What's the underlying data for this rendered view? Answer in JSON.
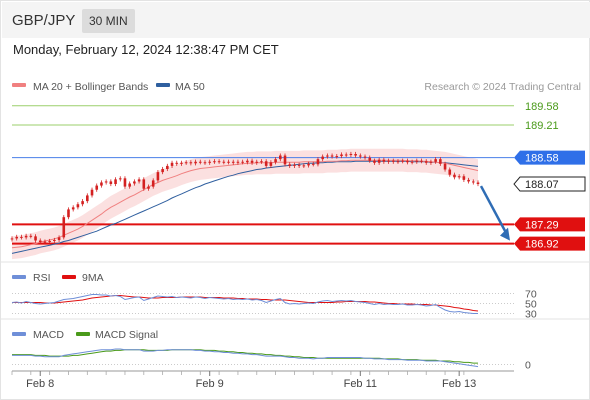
{
  "header": {
    "symbol": "GBP/JPY",
    "timeframe": "30 MIN",
    "datetime": "Monday, February 12, 2024 12:38:47 PM CET"
  },
  "legend": {
    "ma20_label": "MA 20 + Bollinger Bands",
    "ma50_label": "MA 50",
    "rsi_label": "RSI",
    "rsi_ma_label": "9MA",
    "macd_label": "MACD",
    "macd_signal_label": "MACD Signal"
  },
  "credit": "Research © 2024 Trading Central",
  "colors": {
    "ma20": "#f08080",
    "ma50": "#2f5f9f",
    "bands_fill": "#fadada",
    "resistance": "#9bcf6b",
    "pivot": "#4a7fe8",
    "support": "#e01010",
    "candle": "#d42020",
    "arrow": "#2f6db5",
    "rsi": "#6f8fd8",
    "macd": "#6f8fd8",
    "macd_signal": "#4a9a1a"
  },
  "chart_data": [
    {
      "type": "candlestick",
      "price_axis": {
        "ylim": [
          186.7,
          189.75
        ]
      },
      "levels": [
        {
          "label": "189.58",
          "value": 189.58,
          "kind": "resistance"
        },
        {
          "label": "189.21",
          "value": 189.21,
          "kind": "resistance"
        },
        {
          "label": "188.58",
          "value": 188.58,
          "kind": "pivot"
        },
        {
          "label": "188.07",
          "value": 188.07,
          "kind": "last"
        },
        {
          "label": "187.29",
          "value": 187.29,
          "kind": "support"
        },
        {
          "label": "186.92",
          "value": 186.92,
          "kind": "support"
        }
      ],
      "x_ticks": [
        "Feb 8",
        "Feb 9",
        "Feb 11",
        "Feb 13"
      ],
      "x_tick_index": [
        6,
        42,
        74,
        95
      ],
      "n_bars": 100,
      "close": [
        187.02,
        187.05,
        187.04,
        187.07,
        187.06,
        186.98,
        186.95,
        186.96,
        186.97,
        186.99,
        187.04,
        187.43,
        187.58,
        187.62,
        187.68,
        187.74,
        187.85,
        187.96,
        188.04,
        188.1,
        188.12,
        188.07,
        188.16,
        188.18,
        188.02,
        188.08,
        188.12,
        188.16,
        187.98,
        188.02,
        188.14,
        188.3,
        188.36,
        188.42,
        188.48,
        188.46,
        188.48,
        188.49,
        188.47,
        188.5,
        188.49,
        188.48,
        188.5,
        188.51,
        188.5,
        188.49,
        188.5,
        188.48,
        188.5,
        188.49,
        188.52,
        188.48,
        188.5,
        188.51,
        188.42,
        188.49,
        188.55,
        188.62,
        188.45,
        188.42,
        188.44,
        188.42,
        188.43,
        188.46,
        188.45,
        188.55,
        188.6,
        188.62,
        188.6,
        188.61,
        188.64,
        188.63,
        188.65,
        188.62,
        188.6,
        188.58,
        188.52,
        188.48,
        188.54,
        188.5,
        188.52,
        188.5,
        188.51,
        188.52,
        188.49,
        188.5,
        188.52,
        188.51,
        188.48,
        188.5,
        188.55,
        188.46,
        188.35,
        188.25,
        188.2,
        188.22,
        188.15,
        188.12,
        188.1,
        188.07
      ],
      "ma20": [
        186.84,
        186.85,
        186.86,
        186.88,
        186.9,
        186.92,
        186.95,
        186.97,
        186.99,
        187.01,
        187.04,
        187.08,
        187.12,
        187.16,
        187.2,
        187.25,
        187.31,
        187.37,
        187.43,
        187.49,
        187.56,
        187.62,
        187.67,
        187.72,
        187.77,
        187.82,
        187.86,
        187.91,
        187.96,
        188.01,
        188.06,
        188.1,
        188.14,
        188.17,
        188.2,
        188.23,
        188.27,
        188.3,
        188.33,
        188.35,
        188.37,
        188.38,
        188.39,
        188.4,
        188.41,
        188.42,
        188.43,
        188.44,
        188.45,
        188.46,
        188.47,
        188.47,
        188.48,
        188.48,
        188.48,
        188.48,
        188.49,
        188.49,
        188.49,
        188.49,
        188.49,
        188.49,
        188.5,
        188.5,
        188.5,
        188.5,
        188.5,
        188.51,
        188.51,
        188.51,
        188.52,
        188.52,
        188.53,
        188.53,
        188.53,
        188.53,
        188.53,
        188.53,
        188.53,
        188.53,
        188.53,
        188.53,
        188.53,
        188.53,
        188.52,
        188.52,
        188.52,
        188.51,
        188.51,
        188.5,
        188.49,
        188.48,
        188.47,
        188.45,
        188.43,
        188.41,
        188.39,
        188.37,
        188.35,
        188.33
      ],
      "bollinger_band_width": 0.22,
      "ma50": [
        186.73,
        186.75,
        186.77,
        186.79,
        186.81,
        186.83,
        186.85,
        186.87,
        186.89,
        186.91,
        186.93,
        186.96,
        186.98,
        187.01,
        187.04,
        187.07,
        187.1,
        187.13,
        187.16,
        187.2,
        187.24,
        187.28,
        187.31,
        187.35,
        187.39,
        187.43,
        187.47,
        187.51,
        187.55,
        187.59,
        187.63,
        187.67,
        187.71,
        187.75,
        187.8,
        187.84,
        187.88,
        187.92,
        187.96,
        188.0,
        188.03,
        188.07,
        188.1,
        188.13,
        188.16,
        188.19,
        188.22,
        188.24,
        188.27,
        188.29,
        188.31,
        188.33,
        188.35,
        188.36,
        188.38,
        188.39,
        188.4,
        188.41,
        188.42,
        188.43,
        188.44,
        188.45,
        188.46,
        188.47,
        188.47,
        188.48,
        188.48,
        188.49,
        188.49,
        188.5,
        188.5,
        188.5,
        188.5,
        188.51,
        188.51,
        188.51,
        188.51,
        188.51,
        188.51,
        188.51,
        188.51,
        188.51,
        188.51,
        188.51,
        188.51,
        188.5,
        188.5,
        188.5,
        188.5,
        188.49,
        188.49,
        188.48,
        188.48,
        188.47,
        188.46,
        188.45,
        188.44,
        188.43,
        188.42,
        188.41
      ],
      "forecast_arrow": {
        "from_value": 188.07,
        "to_value": 186.92
      }
    },
    {
      "type": "line",
      "name": "RSI",
      "ylim": [
        25,
        75
      ],
      "y_ticks": [
        70,
        50,
        30
      ],
      "series": [
        {
          "name": "RSI",
          "values": [
            52,
            53,
            51,
            54,
            52,
            50,
            49,
            50,
            51,
            52,
            55,
            58,
            59,
            60,
            62,
            64,
            66,
            68,
            68,
            67,
            67,
            65,
            66,
            64,
            58,
            60,
            62,
            63,
            56,
            59,
            62,
            65,
            64,
            63,
            64,
            62,
            63,
            62,
            61,
            63,
            62,
            60,
            62,
            61,
            60,
            59,
            60,
            58,
            59,
            58,
            59,
            57,
            58,
            56,
            52,
            55,
            58,
            60,
            52,
            49,
            50,
            49,
            50,
            51,
            50,
            53,
            55,
            56,
            54,
            55,
            56,
            55,
            56,
            54,
            53,
            52,
            50,
            48,
            50,
            48,
            49,
            48,
            48,
            49,
            47,
            47,
            48,
            47,
            45,
            46,
            48,
            42,
            37,
            34,
            33,
            34,
            32,
            31,
            30,
            30
          ]
        },
        {
          "name": "9MA",
          "values": [
            52,
            52,
            52,
            52,
            52,
            52,
            52,
            51,
            51,
            51,
            52,
            53,
            54,
            55,
            56,
            57,
            59,
            61,
            62,
            63,
            64,
            65,
            66,
            66,
            65,
            64,
            63,
            63,
            62,
            61,
            61,
            61,
            62,
            62,
            62,
            62,
            63,
            63,
            63,
            63,
            63,
            62,
            62,
            62,
            62,
            61,
            61,
            61,
            60,
            60,
            59,
            59,
            59,
            58,
            58,
            57,
            57,
            57,
            57,
            56,
            55,
            54,
            53,
            52,
            52,
            52,
            52,
            52,
            52,
            53,
            53,
            54,
            54,
            54,
            54,
            54,
            53,
            53,
            52,
            51,
            50,
            50,
            49,
            49,
            49,
            49,
            48,
            48,
            48,
            47,
            47,
            46,
            45,
            44,
            42,
            41,
            39,
            38,
            36,
            35
          ]
        }
      ]
    },
    {
      "type": "line",
      "name": "MACD",
      "y_ticks": [
        0
      ],
      "ylim": [
        -0.05,
        0.32
      ],
      "series": [
        {
          "name": "MACD",
          "values": [
            0.13,
            0.13,
            0.13,
            0.13,
            0.13,
            0.12,
            0.12,
            0.11,
            0.11,
            0.11,
            0.11,
            0.13,
            0.14,
            0.15,
            0.16,
            0.17,
            0.18,
            0.19,
            0.2,
            0.21,
            0.21,
            0.21,
            0.22,
            0.22,
            0.21,
            0.21,
            0.21,
            0.21,
            0.19,
            0.19,
            0.19,
            0.2,
            0.2,
            0.21,
            0.21,
            0.21,
            0.21,
            0.21,
            0.21,
            0.2,
            0.2,
            0.19,
            0.19,
            0.18,
            0.18,
            0.17,
            0.17,
            0.16,
            0.16,
            0.15,
            0.15,
            0.14,
            0.14,
            0.13,
            0.12,
            0.12,
            0.12,
            0.12,
            0.11,
            0.1,
            0.1,
            0.09,
            0.09,
            0.09,
            0.08,
            0.09,
            0.09,
            0.1,
            0.1,
            0.1,
            0.1,
            0.1,
            0.1,
            0.1,
            0.1,
            0.09,
            0.09,
            0.08,
            0.08,
            0.08,
            0.07,
            0.07,
            0.07,
            0.07,
            0.06,
            0.06,
            0.06,
            0.06,
            0.05,
            0.05,
            0.05,
            0.05,
            0.04,
            0.03,
            0.02,
            0.01,
            0.0,
            -0.01,
            -0.02,
            -0.03
          ]
        },
        {
          "name": "MACD Signal",
          "values": [
            0.14,
            0.14,
            0.14,
            0.14,
            0.14,
            0.13,
            0.13,
            0.13,
            0.12,
            0.12,
            0.12,
            0.12,
            0.12,
            0.13,
            0.13,
            0.14,
            0.15,
            0.16,
            0.17,
            0.18,
            0.19,
            0.19,
            0.2,
            0.2,
            0.21,
            0.21,
            0.21,
            0.21,
            0.21,
            0.2,
            0.2,
            0.2,
            0.2,
            0.2,
            0.21,
            0.21,
            0.21,
            0.21,
            0.21,
            0.21,
            0.21,
            0.2,
            0.2,
            0.2,
            0.19,
            0.19,
            0.18,
            0.18,
            0.17,
            0.17,
            0.16,
            0.16,
            0.15,
            0.15,
            0.14,
            0.14,
            0.13,
            0.13,
            0.12,
            0.12,
            0.11,
            0.11,
            0.1,
            0.1,
            0.1,
            0.09,
            0.09,
            0.09,
            0.09,
            0.09,
            0.09,
            0.09,
            0.09,
            0.09,
            0.09,
            0.09,
            0.09,
            0.09,
            0.09,
            0.08,
            0.08,
            0.08,
            0.08,
            0.07,
            0.07,
            0.07,
            0.07,
            0.06,
            0.06,
            0.06,
            0.06,
            0.05,
            0.05,
            0.05,
            0.04,
            0.04,
            0.03,
            0.03,
            0.02,
            0.02
          ]
        }
      ]
    }
  ]
}
